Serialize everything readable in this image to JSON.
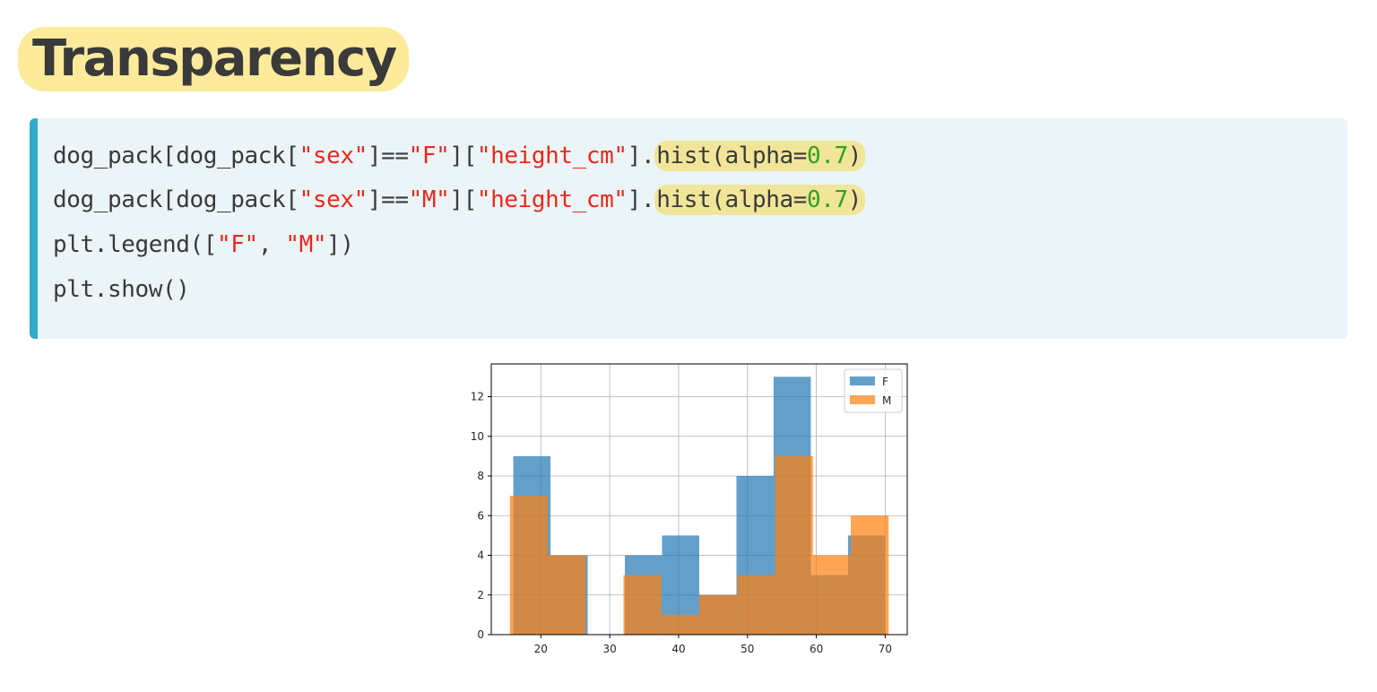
{
  "title": "Transparency",
  "code": {
    "line1": {
      "a": "dog_pack[dog_pack[",
      "b": "\"sex\"",
      "c": "]==",
      "d": "\"F\"",
      "e": "][",
      "f": "\"height_cm\"",
      "g": "].",
      "h": "hist(alpha=",
      "i": "0.7",
      "j": ")"
    },
    "line2": {
      "a": "dog_pack[dog_pack[",
      "b": "\"sex\"",
      "c": "]==",
      "d": "\"M\"",
      "e": "][",
      "f": "\"height_cm\"",
      "g": "].",
      "h": "hist(alpha=",
      "i": "0.7",
      "j": ")"
    },
    "line3": {
      "a": "plt.legend([",
      "b": "\"F\"",
      "c": ", ",
      "d": "\"M\"",
      "e": "])"
    },
    "line4": {
      "a": "plt.show()"
    }
  },
  "colors": {
    "title_highlight": "#fdeb9b",
    "code_background": "#ebf4f7",
    "code_accent": "#33a9cc",
    "string": "#e8291c",
    "number": "#2ea319",
    "series_F": "#1f77b4",
    "series_M": "#ff7f0e"
  },
  "chart_data": {
    "type": "histogram",
    "alpha": 0.7,
    "xlim": [
      12.8,
      73.2
    ],
    "ylim": [
      0,
      13.65
    ],
    "xticks": [
      20,
      30,
      40,
      50,
      60,
      70
    ],
    "yticks": [
      0,
      2,
      4,
      6,
      8,
      10,
      12
    ],
    "grid": true,
    "legend": {
      "position": "top-right",
      "entries": [
        "F",
        "M"
      ]
    },
    "series": [
      {
        "name": "F",
        "bin_edges": [
          16,
          21.4,
          26.8,
          32.2,
          37.6,
          43,
          48.4,
          53.8,
          59.2,
          64.6,
          70
        ],
        "counts": [
          9,
          4,
          0,
          4,
          5,
          2,
          8,
          13,
          3,
          5
        ]
      },
      {
        "name": "M",
        "bin_edges": [
          15.5,
          21,
          26.5,
          32,
          37.5,
          43,
          48.5,
          54,
          59.5,
          65,
          70.5
        ],
        "counts": [
          7,
          4,
          0,
          3,
          1,
          2,
          3,
          9,
          4,
          6
        ]
      }
    ]
  }
}
